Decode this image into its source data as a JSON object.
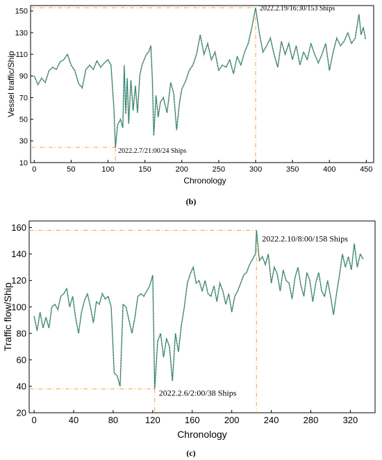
{
  "chart_data": [
    {
      "type": "line",
      "caption": "(b)",
      "xlabel": "Chronology",
      "ylabel": "Vessel traffic/Ship",
      "xlim": [
        -5,
        460
      ],
      "ylim": [
        10,
        155
      ],
      "xticks": [
        0,
        50,
        100,
        150,
        200,
        250,
        300,
        350,
        400,
        450
      ],
      "yticks": [
        10,
        30,
        50,
        70,
        90,
        110,
        130,
        150
      ],
      "grid": false,
      "colors": {
        "line": "#1a8a8a",
        "markers": "#f5b26b",
        "guides": "#f0a040"
      },
      "series": [
        {
          "values": [
            [
              0,
              90
            ],
            [
              5,
              82
            ],
            [
              10,
              88
            ],
            [
              15,
              84
            ],
            [
              20,
              95
            ],
            [
              25,
              98
            ],
            [
              30,
              96
            ],
            [
              35,
              103
            ],
            [
              40,
              105
            ],
            [
              45,
              110
            ],
            [
              50,
              100
            ],
            [
              55,
              95
            ],
            [
              60,
              83
            ],
            [
              65,
              79
            ],
            [
              70,
              96
            ],
            [
              75,
              100
            ],
            [
              80,
              96
            ],
            [
              85,
              104
            ],
            [
              90,
              98
            ],
            [
              95,
              102
            ],
            [
              100,
              105
            ],
            [
              104,
              100
            ],
            [
              108,
              60
            ],
            [
              110,
              24
            ],
            [
              113,
              45
            ],
            [
              117,
              50
            ],
            [
              120,
              42
            ],
            [
              122,
              100
            ],
            [
              124,
              55
            ],
            [
              126,
              88
            ],
            [
              128,
              46
            ],
            [
              131,
              86
            ],
            [
              134,
              58
            ],
            [
              137,
              81
            ],
            [
              140,
              56
            ],
            [
              143,
              90
            ],
            [
              146,
              100
            ],
            [
              149,
              105
            ],
            [
              152,
              110
            ],
            [
              155,
              112
            ],
            [
              158,
              118
            ],
            [
              160,
              88
            ],
            [
              162,
              35
            ],
            [
              165,
              72
            ],
            [
              168,
              52
            ],
            [
              171,
              66
            ],
            [
              175,
              70
            ],
            [
              180,
              56
            ],
            [
              185,
              84
            ],
            [
              189,
              74
            ],
            [
              193,
              40
            ],
            [
              197,
              66
            ],
            [
              200,
              78
            ],
            [
              205,
              85
            ],
            [
              210,
              95
            ],
            [
              215,
              100
            ],
            [
              220,
              110
            ],
            [
              225,
              128
            ],
            [
              230,
              110
            ],
            [
              235,
              120
            ],
            [
              240,
              105
            ],
            [
              245,
              112
            ],
            [
              250,
              95
            ],
            [
              255,
              100
            ],
            [
              260,
              98
            ],
            [
              265,
              105
            ],
            [
              270,
              92
            ],
            [
              275,
              108
            ],
            [
              280,
              100
            ],
            [
              285,
              112
            ],
            [
              290,
              120
            ],
            [
              295,
              135
            ],
            [
              300,
              153
            ],
            [
              305,
              130
            ],
            [
              310,
              112
            ],
            [
              315,
              118
            ],
            [
              320,
              125
            ],
            [
              325,
              110
            ],
            [
              330,
              98
            ],
            [
              335,
              122
            ],
            [
              340,
              110
            ],
            [
              345,
              120
            ],
            [
              350,
              105
            ],
            [
              355,
              118
            ],
            [
              360,
              100
            ],
            [
              365,
              112
            ],
            [
              370,
              105
            ],
            [
              375,
              120
            ],
            [
              380,
              110
            ],
            [
              385,
              102
            ],
            [
              390,
              110
            ],
            [
              395,
              120
            ],
            [
              400,
              95
            ],
            [
              405,
              112
            ],
            [
              410,
              125
            ],
            [
              415,
              118
            ],
            [
              420,
              122
            ],
            [
              425,
              130
            ],
            [
              430,
              120
            ],
            [
              435,
              125
            ],
            [
              440,
              147
            ],
            [
              443,
              128
            ],
            [
              446,
              135
            ],
            [
              449,
              124
            ]
          ]
        }
      ],
      "annotations": [
        {
          "text": "2022.2.19/16:30/153 Ships",
          "x": 300,
          "y": 153
        },
        {
          "text": "2022.2.7/21:00/24 Ships",
          "x": 110,
          "y": 24
        }
      ]
    },
    {
      "type": "line",
      "caption": "(c)",
      "xlabel": "Chronology",
      "ylabel": "Traffic flow/Ship",
      "xlim": [
        -5,
        345
      ],
      "ylim": [
        20,
        165
      ],
      "xticks": [
        0,
        40,
        80,
        120,
        160,
        200,
        240,
        280,
        320
      ],
      "yticks": [
        20,
        40,
        60,
        80,
        100,
        120,
        140,
        160
      ],
      "grid": false,
      "colors": {
        "line": "#1a8a8a",
        "markers": "#f5b26b",
        "guides": "#f0a040"
      },
      "series": [
        {
          "values": [
            [
              0,
              93
            ],
            [
              3,
              82
            ],
            [
              6,
              96
            ],
            [
              9,
              84
            ],
            [
              12,
              92
            ],
            [
              15,
              84
            ],
            [
              18,
              100
            ],
            [
              21,
              102
            ],
            [
              24,
              98
            ],
            [
              27,
              108
            ],
            [
              30,
              110
            ],
            [
              33,
              114
            ],
            [
              36,
              100
            ],
            [
              39,
              108
            ],
            [
              42,
              92
            ],
            [
              45,
              80
            ],
            [
              48,
              96
            ],
            [
              51,
              105
            ],
            [
              54,
              110
            ],
            [
              57,
              100
            ],
            [
              60,
              88
            ],
            [
              63,
              104
            ],
            [
              66,
              102
            ],
            [
              69,
              110
            ],
            [
              72,
              106
            ],
            [
              75,
              108
            ],
            [
              78,
              100
            ],
            [
              81,
              50
            ],
            [
              84,
              48
            ],
            [
              87,
              40
            ],
            [
              90,
              102
            ],
            [
              93,
              100
            ],
            [
              96,
              90
            ],
            [
              99,
              80
            ],
            [
              102,
              92
            ],
            [
              105,
              108
            ],
            [
              108,
              110
            ],
            [
              111,
              108
            ],
            [
              114,
              112
            ],
            [
              117,
              116
            ],
            [
              120,
              124
            ],
            [
              122,
              38
            ],
            [
              125,
              74
            ],
            [
              128,
              80
            ],
            [
              131,
              62
            ],
            [
              134,
              76
            ],
            [
              137,
              70
            ],
            [
              140,
              44
            ],
            [
              143,
              80
            ],
            [
              146,
              66
            ],
            [
              149,
              86
            ],
            [
              152,
              100
            ],
            [
              155,
              118
            ],
            [
              158,
              125
            ],
            [
              161,
              130
            ],
            [
              164,
              118
            ],
            [
              167,
              120
            ],
            [
              170,
              112
            ],
            [
              173,
              120
            ],
            [
              176,
              110
            ],
            [
              179,
              108
            ],
            [
              182,
              116
            ],
            [
              185,
              104
            ],
            [
              188,
              118
            ],
            [
              191,
              112
            ],
            [
              194,
              102
            ],
            [
              197,
              110
            ],
            [
              200,
              96
            ],
            [
              203,
              108
            ],
            [
              206,
              112
            ],
            [
              209,
              118
            ],
            [
              212,
              124
            ],
            [
              215,
              126
            ],
            [
              218,
              132
            ],
            [
              221,
              136
            ],
            [
              224,
              140
            ],
            [
              225,
              158
            ],
            [
              228,
              135
            ],
            [
              231,
              138
            ],
            [
              234,
              132
            ],
            [
              237,
              140
            ],
            [
              240,
              118
            ],
            [
              243,
              130
            ],
            [
              246,
              125
            ],
            [
              249,
              112
            ],
            [
              252,
              128
            ],
            [
              255,
              120
            ],
            [
              258,
              118
            ],
            [
              261,
              106
            ],
            [
              264,
              122
            ],
            [
              267,
              130
            ],
            [
              270,
              116
            ],
            [
              273,
              108
            ],
            [
              276,
              126
            ],
            [
              279,
              120
            ],
            [
              282,
              104
            ],
            [
              285,
              118
            ],
            [
              288,
              126
            ],
            [
              291,
              112
            ],
            [
              294,
              108
            ],
            [
              297,
              120
            ],
            [
              300,
              108
            ],
            [
              303,
              94
            ],
            [
              306,
              110
            ],
            [
              309,
              124
            ],
            [
              312,
              140
            ],
            [
              315,
              130
            ],
            [
              318,
              138
            ],
            [
              321,
              128
            ],
            [
              324,
              148
            ],
            [
              327,
              130
            ],
            [
              330,
              140
            ],
            [
              333,
              136
            ]
          ]
        }
      ],
      "annotations": [
        {
          "text": "2022.2.10/8:00/158 Ships",
          "x": 225,
          "y": 158
        },
        {
          "text": "2022.2.6/2:00/38 Ships",
          "x": 122,
          "y": 38
        }
      ]
    }
  ]
}
